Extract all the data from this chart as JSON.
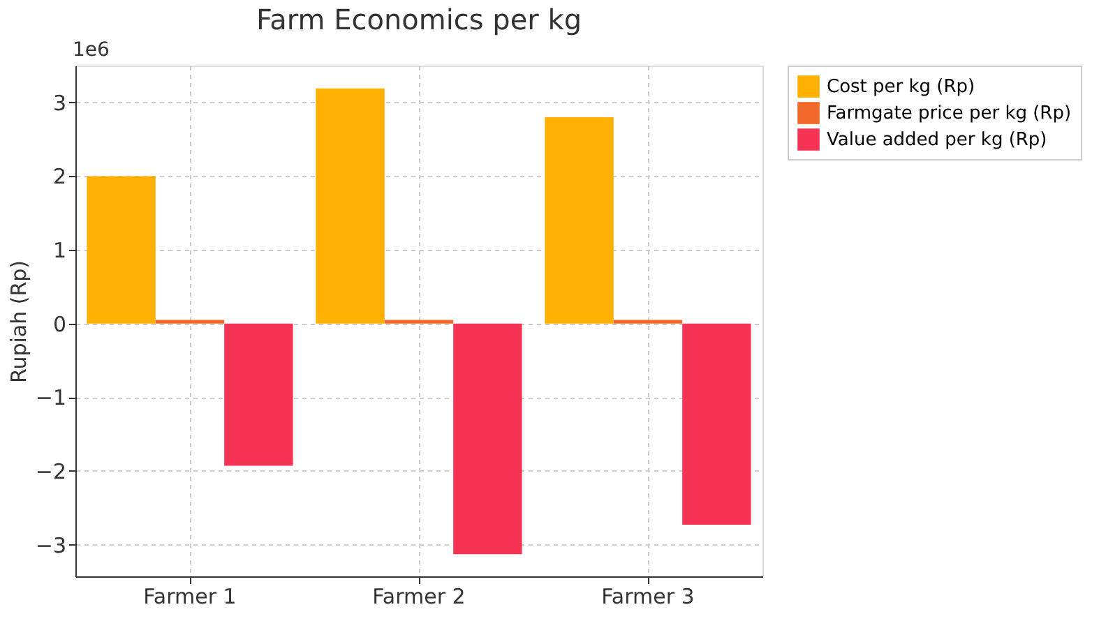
{
  "chart_data": {
    "type": "bar",
    "title": "Farm Economics per kg",
    "ylabel": "Rupiah (Rp)",
    "categories": [
      "Farmer 1",
      "Farmer 2",
      "Farmer 3"
    ],
    "series": [
      {
        "name": "Cost per kg (Rp)",
        "color": "#ffb000",
        "values": [
          2.0,
          3.19,
          2.8
        ]
      },
      {
        "name": "Farmgate price per kg (Rp)",
        "color": "#f0692a",
        "values": [
          0.05,
          0.05,
          0.05
        ]
      },
      {
        "name": "Value added per kg (Rp)",
        "color": "#f43355",
        "values": [
          -1.93,
          -3.13,
          -2.73
        ]
      }
    ],
    "ylim": [
      -3.43,
      3.5
    ],
    "yticks": [
      {
        "value": -3,
        "label": "−3"
      },
      {
        "value": -2,
        "label": "−2"
      },
      {
        "value": -1,
        "label": "−1"
      },
      0,
      1,
      2,
      3
    ],
    "annotations": [
      "1e6"
    ],
    "grid": true,
    "legend": "right"
  }
}
